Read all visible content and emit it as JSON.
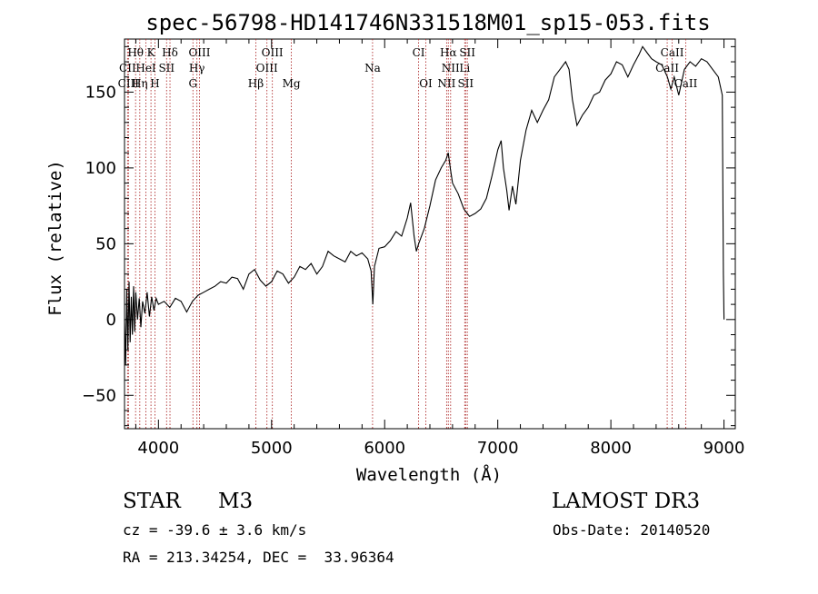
{
  "chart_data": {
    "type": "line",
    "title": "spec-56798-HD141746N331518M01_sp15-053.fits",
    "xlabel": "Wavelength (Å)",
    "ylabel": "Flux (relative)",
    "xlim": [
      3700,
      9100
    ],
    "ylim": [
      -72,
      185
    ],
    "x_ticks": [
      4000,
      5000,
      6000,
      7000,
      8000,
      9000
    ],
    "y_ticks": [
      -50,
      0,
      50,
      100,
      150
    ],
    "series": [
      {
        "name": "spectrum",
        "points": [
          [
            3700,
            0
          ],
          [
            3710,
            -30
          ],
          [
            3720,
            20
          ],
          [
            3730,
            -20
          ],
          [
            3740,
            25
          ],
          [
            3750,
            -15
          ],
          [
            3760,
            15
          ],
          [
            3770,
            -10
          ],
          [
            3780,
            22
          ],
          [
            3790,
            -8
          ],
          [
            3800,
            18
          ],
          [
            3815,
            0
          ],
          [
            3830,
            14
          ],
          [
            3845,
            -5
          ],
          [
            3860,
            12
          ],
          [
            3880,
            4
          ],
          [
            3900,
            18
          ],
          [
            3920,
            2
          ],
          [
            3940,
            15
          ],
          [
            3960,
            6
          ],
          [
            3980,
            14
          ],
          [
            4000,
            10
          ],
          [
            4050,
            12
          ],
          [
            4100,
            8
          ],
          [
            4150,
            14
          ],
          [
            4200,
            12
          ],
          [
            4250,
            5
          ],
          [
            4300,
            12
          ],
          [
            4350,
            16
          ],
          [
            4400,
            18
          ],
          [
            4450,
            20
          ],
          [
            4500,
            22
          ],
          [
            4550,
            25
          ],
          [
            4600,
            24
          ],
          [
            4650,
            28
          ],
          [
            4700,
            27
          ],
          [
            4750,
            20
          ],
          [
            4800,
            30
          ],
          [
            4850,
            33
          ],
          [
            4900,
            26
          ],
          [
            4950,
            22
          ],
          [
            5000,
            25
          ],
          [
            5050,
            32
          ],
          [
            5100,
            30
          ],
          [
            5150,
            24
          ],
          [
            5200,
            28
          ],
          [
            5250,
            35
          ],
          [
            5300,
            33
          ],
          [
            5350,
            37
          ],
          [
            5400,
            30
          ],
          [
            5450,
            35
          ],
          [
            5500,
            45
          ],
          [
            5550,
            42
          ],
          [
            5600,
            40
          ],
          [
            5650,
            38
          ],
          [
            5700,
            45
          ],
          [
            5750,
            42
          ],
          [
            5800,
            44
          ],
          [
            5850,
            40
          ],
          [
            5880,
            32
          ],
          [
            5895,
            10
          ],
          [
            5910,
            35
          ],
          [
            5950,
            47
          ],
          [
            6000,
            48
          ],
          [
            6050,
            52
          ],
          [
            6100,
            58
          ],
          [
            6150,
            55
          ],
          [
            6200,
            67
          ],
          [
            6230,
            77
          ],
          [
            6260,
            55
          ],
          [
            6280,
            45
          ],
          [
            6300,
            50
          ],
          [
            6350,
            60
          ],
          [
            6400,
            75
          ],
          [
            6450,
            92
          ],
          [
            6500,
            100
          ],
          [
            6540,
            105
          ],
          [
            6562,
            110
          ],
          [
            6580,
            100
          ],
          [
            6600,
            90
          ],
          [
            6650,
            83
          ],
          [
            6700,
            73
          ],
          [
            6750,
            68
          ],
          [
            6800,
            70
          ],
          [
            6850,
            73
          ],
          [
            6900,
            80
          ],
          [
            6950,
            95
          ],
          [
            7000,
            112
          ],
          [
            7030,
            118
          ],
          [
            7050,
            100
          ],
          [
            7080,
            85
          ],
          [
            7100,
            72
          ],
          [
            7130,
            88
          ],
          [
            7160,
            76
          ],
          [
            7200,
            105
          ],
          [
            7250,
            125
          ],
          [
            7300,
            138
          ],
          [
            7350,
            130
          ],
          [
            7400,
            138
          ],
          [
            7450,
            145
          ],
          [
            7500,
            160
          ],
          [
            7550,
            165
          ],
          [
            7600,
            170
          ],
          [
            7630,
            165
          ],
          [
            7660,
            145
          ],
          [
            7700,
            128
          ],
          [
            7750,
            135
          ],
          [
            7800,
            140
          ],
          [
            7850,
            148
          ],
          [
            7900,
            150
          ],
          [
            7950,
            158
          ],
          [
            8000,
            162
          ],
          [
            8050,
            170
          ],
          [
            8100,
            168
          ],
          [
            8150,
            160
          ],
          [
            8200,
            168
          ],
          [
            8250,
            175
          ],
          [
            8280,
            180
          ],
          [
            8320,
            176
          ],
          [
            8360,
            172
          ],
          [
            8400,
            170
          ],
          [
            8450,
            168
          ],
          [
            8500,
            160
          ],
          [
            8530,
            152
          ],
          [
            8560,
            160
          ],
          [
            8600,
            148
          ],
          [
            8650,
            165
          ],
          [
            8700,
            170
          ],
          [
            8750,
            167
          ],
          [
            8800,
            172
          ],
          [
            8850,
            170
          ],
          [
            8900,
            165
          ],
          [
            8950,
            160
          ],
          [
            8985,
            148
          ],
          [
            8995,
            30
          ],
          [
            9000,
            0
          ]
        ]
      }
    ],
    "spectral_lines": [
      {
        "label": "Hθ",
        "wavelength": 3798,
        "row": 0
      },
      {
        "label": "K",
        "wavelength": 3934,
        "row": 0
      },
      {
        "label": "Hδ",
        "wavelength": 4102,
        "row": 0
      },
      {
        "label": "OIII",
        "wavelength": 4363,
        "row": 0
      },
      {
        "label": "OIII",
        "wavelength": 5007,
        "row": 0
      },
      {
        "label": "CI",
        "wavelength": 6300,
        "row": 0
      },
      {
        "label": "Hα",
        "wavelength": 6563,
        "row": 0
      },
      {
        "label": "SII",
        "wavelength": 6731,
        "row": 0
      },
      {
        "label": "CaII",
        "wavelength": 8542,
        "row": 0
      },
      {
        "label": "CII",
        "wavelength": 3727,
        "row": 1
      },
      {
        "label": "HeI",
        "wavelength": 3889,
        "row": 1
      },
      {
        "label": "SII",
        "wavelength": 4072,
        "row": 1
      },
      {
        "label": "Hγ",
        "wavelength": 4340,
        "row": 1
      },
      {
        "label": "OIII",
        "wavelength": 4959,
        "row": 1
      },
      {
        "label": "Na",
        "wavelength": 5893,
        "row": 1
      },
      {
        "label": "NII",
        "wavelength": 6583,
        "row": 1
      },
      {
        "label": "Li",
        "wavelength": 6708,
        "row": 1
      },
      {
        "label": "CaII",
        "wavelength": 8498,
        "row": 1
      },
      {
        "label": "CIII",
        "wavelength": 3735,
        "row": 2
      },
      {
        "label": "Hη",
        "wavelength": 3835,
        "row": 2
      },
      {
        "label": "H",
        "wavelength": 3969,
        "row": 2
      },
      {
        "label": "G",
        "wavelength": 4305,
        "row": 2
      },
      {
        "label": "Hβ",
        "wavelength": 4861,
        "row": 2
      },
      {
        "label": "Mg",
        "wavelength": 5175,
        "row": 2
      },
      {
        "label": "OI",
        "wavelength": 6364,
        "row": 2
      },
      {
        "label": "NII",
        "wavelength": 6548,
        "row": 2
      },
      {
        "label": "SII",
        "wavelength": 6716,
        "row": 2
      },
      {
        "label": "CaII",
        "wavelength": 8662,
        "row": 2
      }
    ],
    "line_marks_color": "#b03030"
  },
  "info": {
    "object_class": "STAR",
    "subclass": "M3",
    "survey": "LAMOST DR3",
    "cz": "cz = -39.6 ± 3.6 km/s",
    "obs_date": "Obs-Date: 20140520",
    "coords": "RA = 213.34254, DEC =  33.96364"
  }
}
